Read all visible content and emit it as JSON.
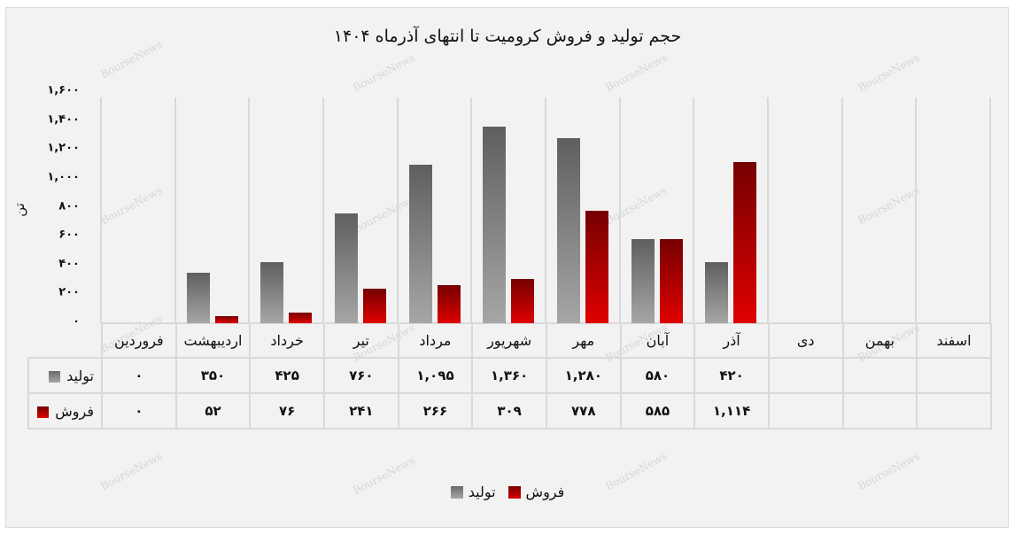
{
  "chart_data": {
    "type": "bar",
    "title": "حجم تولید و فروش کرومیت تا انتهای آذرماه ۱۴۰۴",
    "xlabel": "",
    "ylabel": "تن",
    "ylim": [
      0,
      1600
    ],
    "yticks": [
      "۰",
      "۲۰۰",
      "۴۰۰",
      "۶۰۰",
      "۸۰۰",
      "۱,۰۰۰",
      "۱,۲۰۰",
      "۱,۴۰۰",
      "۱,۶۰۰"
    ],
    "ytick_values": [
      0,
      200,
      400,
      600,
      800,
      1000,
      1200,
      1400,
      1600
    ],
    "categories": [
      "فروردین",
      "اردیبهشت",
      "خرداد",
      "تیر",
      "مرداد",
      "شهریور",
      "مهر",
      "آبان",
      "آذر",
      "دی",
      "بهمن",
      "اسفند"
    ],
    "series": [
      {
        "name": "تولید",
        "color": "#808080",
        "values": [
          0,
          350,
          425,
          760,
          1095,
          1360,
          1280,
          580,
          420,
          null,
          null,
          null
        ]
      },
      {
        "name": "فروش",
        "color": "#c00000",
        "values": [
          0,
          52,
          76,
          241,
          266,
          309,
          778,
          585,
          1114,
          null,
          null,
          null
        ]
      }
    ],
    "grid": "vertical category separators",
    "legend_position": "bottom",
    "data_table": {
      "rows": [
        {
          "label": "تولید",
          "cells": [
            "۰",
            "۳۵۰",
            "۴۲۵",
            "۷۶۰",
            "۱,۰۹۵",
            "۱,۳۶۰",
            "۱,۲۸۰",
            "۵۸۰",
            "۴۲۰",
            "",
            "",
            ""
          ]
        },
        {
          "label": "فروش",
          "cells": [
            "۰",
            "۵۲",
            "۷۶",
            "۲۴۱",
            "۲۶۶",
            "۳۰۹",
            "۷۷۸",
            "۵۸۵",
            "۱,۱۱۴",
            "",
            "",
            ""
          ]
        }
      ]
    }
  },
  "legend": {
    "items": [
      {
        "label": "فروش",
        "key": "sale"
      },
      {
        "label": "تولید",
        "key": "prod"
      }
    ]
  },
  "watermark": "BourseNews"
}
